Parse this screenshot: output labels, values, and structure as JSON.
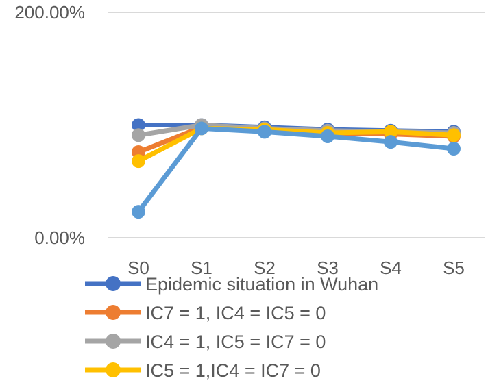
{
  "chart_data": {
    "type": "line",
    "categories": [
      "S0",
      "S1",
      "S2",
      "S3",
      "S4",
      "S5"
    ],
    "y_ticks": [
      "200.00%",
      "0.00%"
    ],
    "ylim": [
      0,
      200
    ],
    "grid": true,
    "legend": "bottom",
    "series": [
      {
        "name": "Epidemic situation in Wuhan",
        "color": "#4472C4",
        "values": [
          100,
          100,
          98,
          96,
          95,
          94
        ],
        "in_legend": true
      },
      {
        "name": "IC7 = 1, IC4 = IC5 = 0",
        "color": "#ED7D31",
        "values": [
          76,
          98,
          96,
          93,
          92,
          90
        ],
        "in_legend": true
      },
      {
        "name": "IC4 = 1, IC5 = IC7 = 0",
        "color": "#A5A5A5",
        "values": [
          91,
          100,
          97,
          95,
          94,
          93
        ],
        "in_legend": true
      },
      {
        "name": "IC5 = 1,IC4 = IC7 = 0",
        "color": "#FFC000",
        "values": [
          68,
          97,
          96,
          93,
          94,
          91
        ],
        "in_legend": true
      },
      {
        "name": "",
        "color": "#5B9BD5",
        "values": [
          23,
          97,
          94,
          90,
          85,
          79
        ],
        "in_legend": false
      }
    ]
  }
}
